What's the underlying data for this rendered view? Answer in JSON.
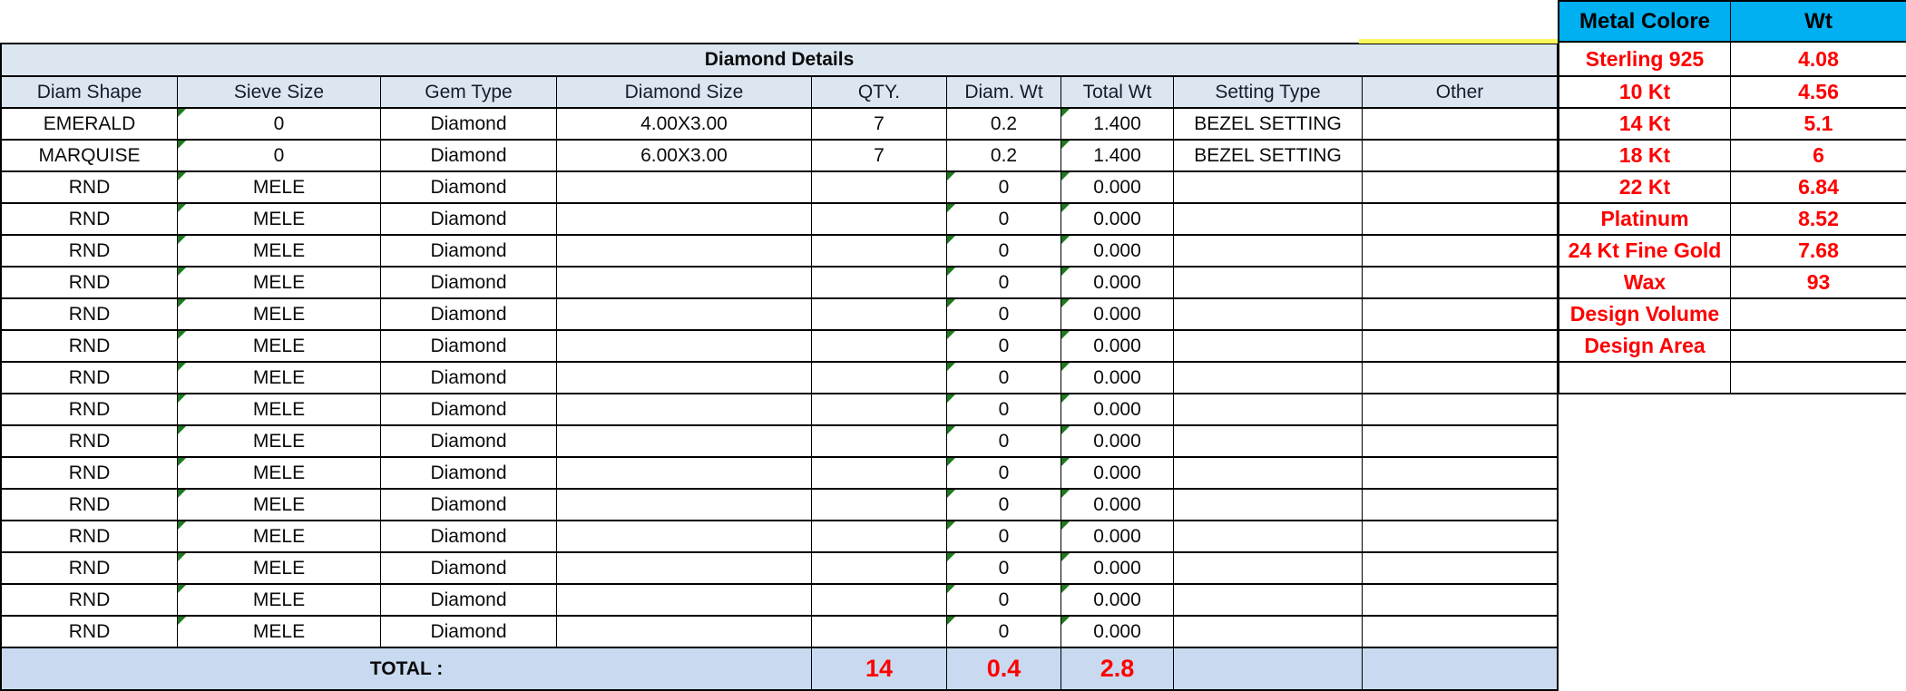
{
  "colors": {
    "page-bg": "#FFFFFF",
    "border-black": "#000000",
    "header-blue": "#DCE6F1",
    "total-blue": "#C9DAF0",
    "accent-cyan": "#00B0F0",
    "value-red": "#FE0000",
    "highlight-yellow": "#F8F85C",
    "triangle-green": "#1E7A1E"
  },
  "diamond_table": {
    "title": "Diamond Details",
    "columns": [
      "Diam Shape",
      "Sieve Size",
      "Gem Type",
      "Diamond Size",
      "QTY.",
      "Diam. Wt",
      "Total Wt",
      "Setting Type",
      "Other"
    ],
    "rows": [
      {
        "shape": "EMERALD",
        "sieve": "0",
        "gem": "Diamond",
        "size": "4.00X3.00",
        "qty": "7",
        "diam_wt": "0.2",
        "total_wt": "1.400",
        "setting": "BEZEL SETTING",
        "other": "",
        "tri_sieve": true,
        "tri_diam": false,
        "tri_total": true
      },
      {
        "shape": "MARQUISE",
        "sieve": "0",
        "gem": "Diamond",
        "size": "6.00X3.00",
        "qty": "7",
        "diam_wt": "0.2",
        "total_wt": "1.400",
        "setting": "BEZEL SETTING",
        "other": "",
        "tri_sieve": true,
        "tri_diam": false,
        "tri_total": true
      },
      {
        "shape": "RND",
        "sieve": "MELE",
        "gem": "Diamond",
        "size": "",
        "qty": "",
        "diam_wt": "0",
        "total_wt": "0.000",
        "setting": "",
        "other": "",
        "tri_sieve": true,
        "tri_diam": true,
        "tri_total": true
      },
      {
        "shape": "RND",
        "sieve": "MELE",
        "gem": "Diamond",
        "size": "",
        "qty": "",
        "diam_wt": "0",
        "total_wt": "0.000",
        "setting": "",
        "other": "",
        "tri_sieve": true,
        "tri_diam": true,
        "tri_total": true
      },
      {
        "shape": "RND",
        "sieve": "MELE",
        "gem": "Diamond",
        "size": "",
        "qty": "",
        "diam_wt": "0",
        "total_wt": "0.000",
        "setting": "",
        "other": "",
        "tri_sieve": true,
        "tri_diam": true,
        "tri_total": true
      },
      {
        "shape": "RND",
        "sieve": "MELE",
        "gem": "Diamond",
        "size": "",
        "qty": "",
        "diam_wt": "0",
        "total_wt": "0.000",
        "setting": "",
        "other": "",
        "tri_sieve": true,
        "tri_diam": true,
        "tri_total": true
      },
      {
        "shape": "RND",
        "sieve": "MELE",
        "gem": "Diamond",
        "size": "",
        "qty": "",
        "diam_wt": "0",
        "total_wt": "0.000",
        "setting": "",
        "other": "",
        "tri_sieve": true,
        "tri_diam": true,
        "tri_total": true
      },
      {
        "shape": "RND",
        "sieve": "MELE",
        "gem": "Diamond",
        "size": "",
        "qty": "",
        "diam_wt": "0",
        "total_wt": "0.000",
        "setting": "",
        "other": "",
        "tri_sieve": true,
        "tri_diam": true,
        "tri_total": true
      },
      {
        "shape": "RND",
        "sieve": "MELE",
        "gem": "Diamond",
        "size": "",
        "qty": "",
        "diam_wt": "0",
        "total_wt": "0.000",
        "setting": "",
        "other": "",
        "tri_sieve": true,
        "tri_diam": true,
        "tri_total": true
      },
      {
        "shape": "RND",
        "sieve": "MELE",
        "gem": "Diamond",
        "size": "",
        "qty": "",
        "diam_wt": "0",
        "total_wt": "0.000",
        "setting": "",
        "other": "",
        "tri_sieve": true,
        "tri_diam": true,
        "tri_total": true
      },
      {
        "shape": "RND",
        "sieve": "MELE",
        "gem": "Diamond",
        "size": "",
        "qty": "",
        "diam_wt": "0",
        "total_wt": "0.000",
        "setting": "",
        "other": "",
        "tri_sieve": true,
        "tri_diam": true,
        "tri_total": true
      },
      {
        "shape": "RND",
        "sieve": "MELE",
        "gem": "Diamond",
        "size": "",
        "qty": "",
        "diam_wt": "0",
        "total_wt": "0.000",
        "setting": "",
        "other": "",
        "tri_sieve": true,
        "tri_diam": true,
        "tri_total": true
      },
      {
        "shape": "RND",
        "sieve": "MELE",
        "gem": "Diamond",
        "size": "",
        "qty": "",
        "diam_wt": "0",
        "total_wt": "0.000",
        "setting": "",
        "other": "",
        "tri_sieve": true,
        "tri_diam": true,
        "tri_total": true
      },
      {
        "shape": "RND",
        "sieve": "MELE",
        "gem": "Diamond",
        "size": "",
        "qty": "",
        "diam_wt": "0",
        "total_wt": "0.000",
        "setting": "",
        "other": "",
        "tri_sieve": true,
        "tri_diam": true,
        "tri_total": true
      },
      {
        "shape": "RND",
        "sieve": "MELE",
        "gem": "Diamond",
        "size": "",
        "qty": "",
        "diam_wt": "0",
        "total_wt": "0.000",
        "setting": "",
        "other": "",
        "tri_sieve": true,
        "tri_diam": true,
        "tri_total": true
      },
      {
        "shape": "RND",
        "sieve": "MELE",
        "gem": "Diamond",
        "size": "",
        "qty": "",
        "diam_wt": "0",
        "total_wt": "0.000",
        "setting": "",
        "other": "",
        "tri_sieve": true,
        "tri_diam": true,
        "tri_total": true
      },
      {
        "shape": "RND",
        "sieve": "MELE",
        "gem": "Diamond",
        "size": "",
        "qty": "",
        "diam_wt": "0",
        "total_wt": "0.000",
        "setting": "",
        "other": "",
        "tri_sieve": true,
        "tri_diam": true,
        "tri_total": true
      }
    ],
    "total": {
      "label": "TOTAL :",
      "qty": "14",
      "diam_wt": "0.4",
      "total_wt": "2.8",
      "setting": "",
      "other": ""
    }
  },
  "metal_table": {
    "headers": [
      "Metal Colore",
      "Wt"
    ],
    "rows": [
      {
        "metal": "Sterling 925",
        "wt": "4.08"
      },
      {
        "metal": "10 Kt",
        "wt": "4.56"
      },
      {
        "metal": "14 Kt",
        "wt": "5.1"
      },
      {
        "metal": "18 Kt",
        "wt": "6"
      },
      {
        "metal": "22 Kt",
        "wt": "6.84"
      },
      {
        "metal": "Platinum",
        "wt": "8.52"
      },
      {
        "metal": "24 Kt Fine Gold",
        "wt": "7.68"
      },
      {
        "metal": "Wax",
        "wt": "93"
      },
      {
        "metal": "Design Volume",
        "wt": ""
      },
      {
        "metal": "Design Area",
        "wt": ""
      },
      {
        "metal": "",
        "wt": ""
      }
    ]
  }
}
